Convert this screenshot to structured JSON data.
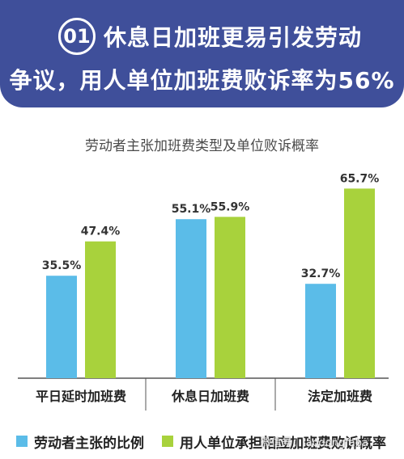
{
  "header": {
    "badge": "01",
    "title_line1": "休息日加班更易引发劳动",
    "title_line2": "争议，用人单位加班费败诉率为56%"
  },
  "chart_data": {
    "type": "bar",
    "title": "劳动者主张加班费类型及单位败诉概率",
    "categories": [
      "平日延时加班费",
      "休息日加班费",
      "法定加班费"
    ],
    "series": [
      {
        "name": "劳动者主张的比例",
        "values": [
          35.5,
          55.1,
          32.7
        ],
        "labels": [
          "35.5%",
          "55.1%",
          "32.7%"
        ],
        "color": "#5bbce8"
      },
      {
        "name": "用人单位承担相应加班费败诉概率",
        "values": [
          47.4,
          55.9,
          65.7
        ],
        "labels": [
          "47.4%",
          "55.9%",
          "65.7%"
        ],
        "color": "#a8d23c"
      }
    ],
    "ylim": [
      0,
      70
    ],
    "grid": false,
    "legend": "bottom"
  },
  "legend": {
    "item1": "劳动者主张的比例",
    "item2": "用人单位承担相应加班费败诉概率"
  },
  "watermark": "微信号：laodongfaba"
}
